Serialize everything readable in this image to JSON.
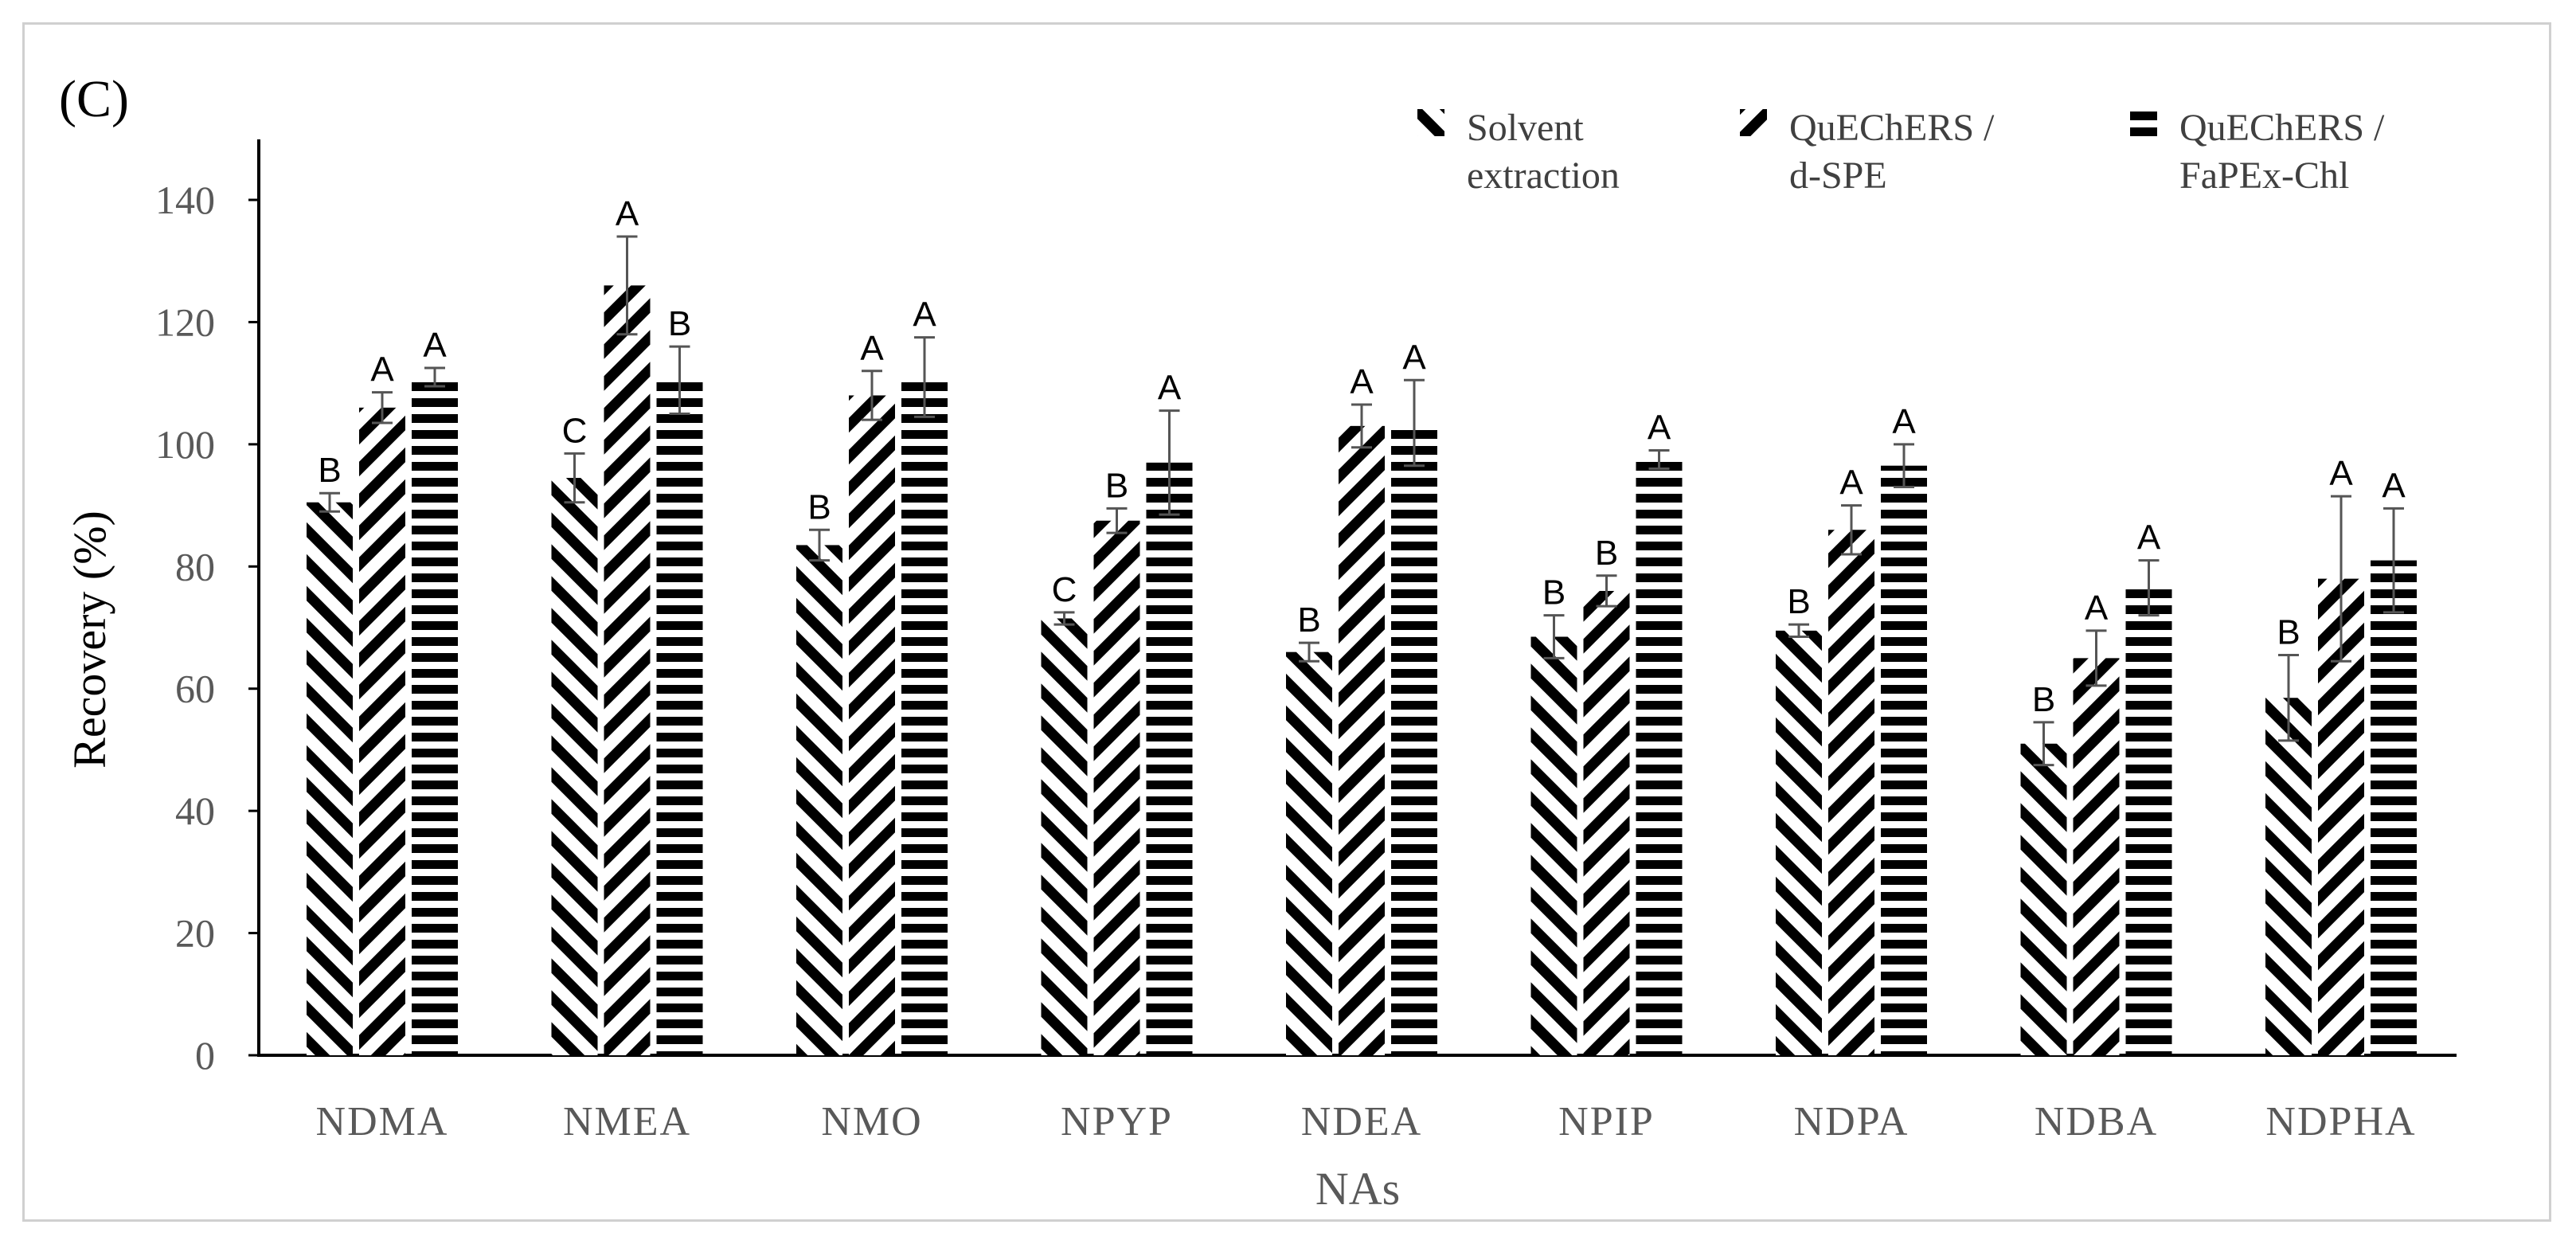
{
  "chart_data": {
    "type": "bar",
    "panel_label": "(C)",
    "title": "",
    "xlabel": "NAs",
    "ylabel": "Recovery (%)",
    "ylim": [
      0,
      150
    ],
    "yticks": [
      0,
      20,
      40,
      60,
      80,
      100,
      120,
      140
    ],
    "grid": false,
    "legend_position": "top-right",
    "categories": [
      "NDMA",
      "NMEA",
      "NMO",
      "NPYP",
      "NDEA",
      "NPIP",
      "NDPA",
      "NDBA",
      "NDPHA"
    ],
    "series": [
      {
        "name": "Solvent extraction",
        "legend_lines": [
          "Solvent",
          "extraction"
        ],
        "pattern": "backslash",
        "values": [
          90.5,
          94.5,
          83.5,
          71.5,
          66,
          68.5,
          69.5,
          51,
          58.5
        ],
        "errors": [
          1.5,
          4,
          2.5,
          1,
          1.5,
          3.5,
          1,
          3.5,
          7
        ],
        "labels": [
          "B",
          "C",
          "B",
          "C",
          "B",
          "B",
          "B",
          "B",
          "B"
        ]
      },
      {
        "name": "QuEChERS / d-SPE",
        "legend_lines": [
          "QuEChERS /",
          "d-SPE"
        ],
        "pattern": "slash",
        "values": [
          106,
          126,
          108,
          87.5,
          103,
          76,
          86,
          65,
          78
        ],
        "errors": [
          2.5,
          8,
          4,
          2,
          3.5,
          2.5,
          4,
          4.5,
          13.5
        ],
        "labels": [
          "A",
          "A",
          "A",
          "B",
          "A",
          "B",
          "A",
          "A",
          "A"
        ]
      },
      {
        "name": "QuEChERS / FaPEx-Chl",
        "legend_lines": [
          "QuEChERS /",
          "FaPEx-Chl"
        ],
        "pattern": "horizontal",
        "values": [
          111,
          110.5,
          111,
          97,
          103.5,
          97.5,
          96.5,
          76.5,
          81
        ],
        "errors": [
          1.5,
          5.5,
          6.5,
          8.5,
          7,
          1.5,
          3.5,
          4.5,
          8.5
        ],
        "labels": [
          "A",
          "B",
          "A",
          "A",
          "A",
          "A",
          "A",
          "A",
          "A"
        ]
      }
    ]
  }
}
